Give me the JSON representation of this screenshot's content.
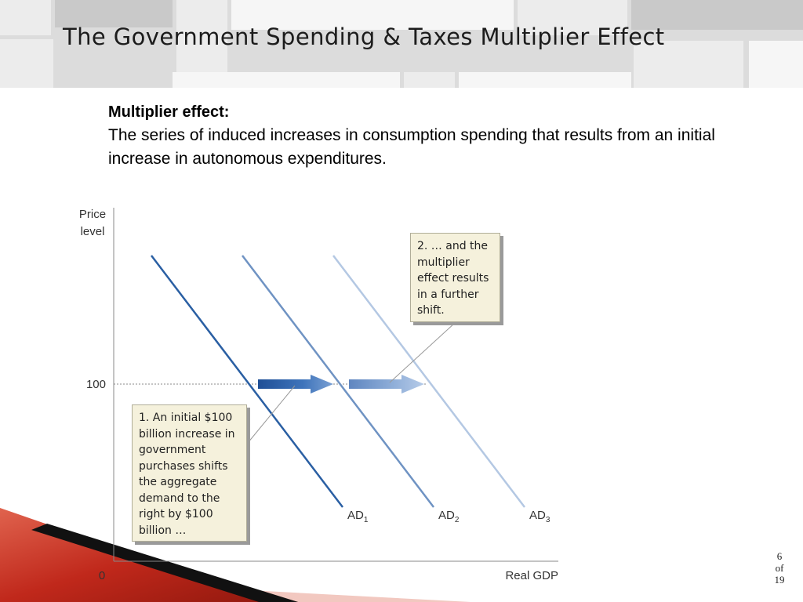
{
  "slide": {
    "title": "The Government Spending & Taxes Multiplier Effect",
    "definition_term": "Multiplier effect:",
    "definition_text": "The series of induced increases in consumption spending that results from an initial increase in autonomous expenditures."
  },
  "diagram": {
    "y_axis_label_line1": "Price",
    "y_axis_label_line2": "level",
    "x_axis_label": "Real GDP",
    "origin_label": "0",
    "price_tick": "100",
    "curves": [
      {
        "name": "AD",
        "subscript": "1",
        "color": "#2a5fa3"
      },
      {
        "name": "AD",
        "subscript": "2",
        "color": "#6f93c3"
      },
      {
        "name": "AD",
        "subscript": "3",
        "color": "#b4c8e3"
      }
    ],
    "callout_1": "1. An initial $100 billion increase in government purchases shifts the aggregate demand to the right by $100 billion …",
    "callout_2": "2. … and the multiplier effect results in a further shift."
  },
  "page": {
    "current": "6",
    "of_label": "of",
    "total": "19"
  },
  "colors": {
    "accent_red": "#c0281b",
    "arrow_dark": "#1f55a0",
    "arrow_light": "#8aaad4",
    "callout_bg": "#f5f1dc"
  }
}
